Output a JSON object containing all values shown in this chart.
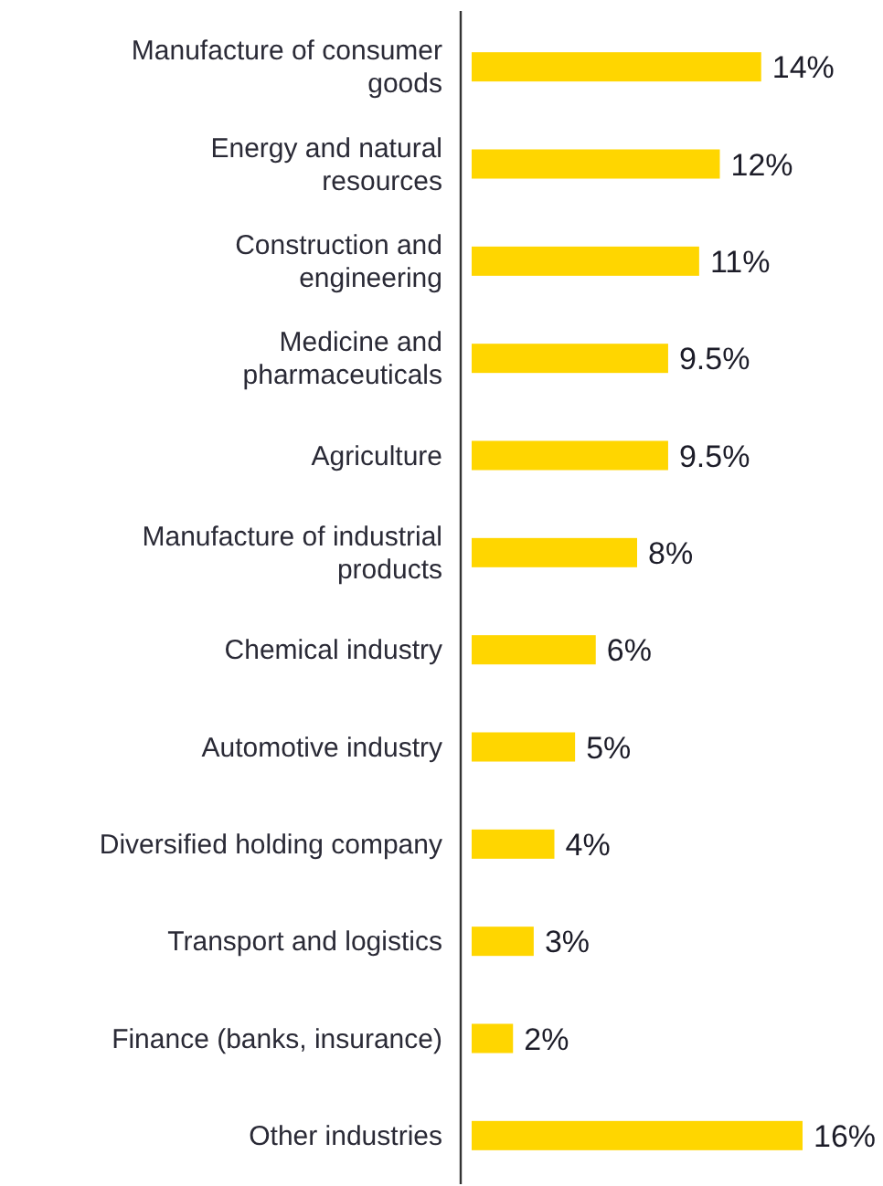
{
  "chart_data": {
    "type": "bar",
    "orientation": "horizontal",
    "categories": [
      "Manufacture of consumer goods",
      "Energy and natural resources",
      "Construction and engineering",
      "Medicine and pharmaceuticals",
      "Agriculture",
      "Manufacture of industrial products",
      "Chemical industry",
      "Automotive industry",
      "Diversified holding company",
      "Transport and logistics",
      "Finance (banks, insurance)",
      "Other industries"
    ],
    "values": [
      14,
      12,
      11,
      9.5,
      9.5,
      8,
      6,
      5,
      4,
      3,
      2,
      16
    ],
    "value_labels": [
      "14%",
      "12%",
      "11%",
      "9.5%",
      "9.5%",
      "8%",
      "6%",
      "5%",
      "4%",
      "3%",
      "2%",
      "16%"
    ],
    "color": "#ffd600"
  }
}
